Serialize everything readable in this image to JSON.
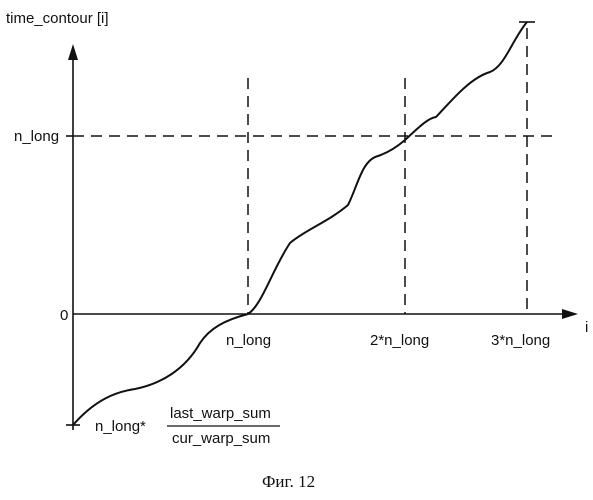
{
  "y_axis_label": "time_contour [i]",
  "x_axis_label": "i",
  "y_ticks": {
    "zero": "0",
    "n_long": "n_long"
  },
  "x_ticks": [
    "n_long",
    "2*n_long",
    "3*n_long"
  ],
  "start_value": {
    "prefix": "n_long*",
    "numerator": "last_warp_sum",
    "denominator": "cur_warp_sum"
  },
  "caption": "Фиг. 12"
}
